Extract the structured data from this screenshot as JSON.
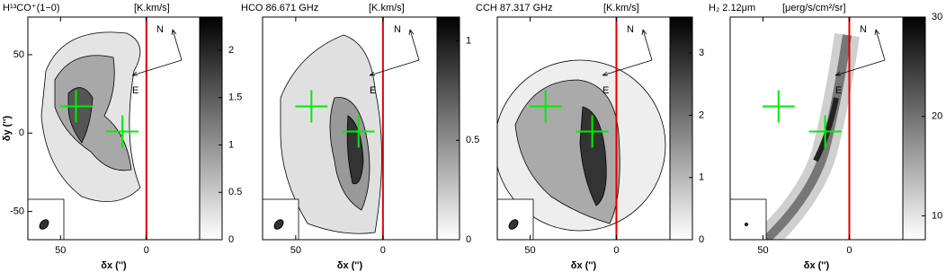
{
  "chart_data": [
    {
      "type": "image",
      "title": "H¹³CO⁺(1−0)",
      "unit": "[K.km/s]",
      "xlabel": "δx ('')",
      "ylabel": "δy ('')",
      "xlim": [
        69,
        -31
      ],
      "xticks": [
        50,
        0
      ],
      "ylim": [
        -68,
        74
      ],
      "yticks": [
        50,
        0,
        -50
      ],
      "clim": [
        0,
        2.35
      ],
      "cticks": [
        0,
        0.5,
        1,
        1.5,
        2
      ],
      "markers": {
        "x": [
          41,
          14
        ],
        "y": [
          17,
          1
        ],
        "color": "#00ee00"
      },
      "vline": {
        "x": 0,
        "color": "#e00000"
      },
      "compass": {
        "north": "N",
        "east": "E"
      }
    },
    {
      "type": "image",
      "title": "HCO 86.671 GHz",
      "unit": "[K.km/s]",
      "xlabel": "δx ('')",
      "xlim": [
        69,
        -31
      ],
      "xticks": [
        50,
        0
      ],
      "ylim": [
        -68,
        74
      ],
      "clim": [
        0,
        1.12
      ],
      "cticks": [
        0,
        0.5,
        1
      ],
      "markers": {
        "x": [
          41,
          14
        ],
        "y": [
          17,
          1
        ],
        "color": "#00ee00"
      },
      "vline": {
        "x": 0,
        "color": "#e00000"
      },
      "compass": {
        "north": "N",
        "east": "E"
      }
    },
    {
      "type": "image",
      "title": "CCH 87.317 GHz",
      "unit": "[K.km/s]",
      "xlabel": "δx ('')",
      "xlim": [
        69,
        -31
      ],
      "xticks": [
        50,
        0
      ],
      "ylim": [
        -68,
        74
      ],
      "clim": [
        0,
        3.58
      ],
      "cticks": [
        0,
        1,
        2,
        3
      ],
      "markers": {
        "x": [
          41,
          14
        ],
        "y": [
          17,
          1
        ],
        "color": "#00ee00"
      },
      "vline": {
        "x": 0,
        "color": "#e00000"
      },
      "compass": {
        "north": "N",
        "east": "E"
      }
    },
    {
      "type": "image",
      "title": "H₂ 2.12μm",
      "unit": "[μerg/s/cm²/sr]",
      "xlabel": "δx ('')",
      "xlim": [
        69,
        -31
      ],
      "xticks": [
        50,
        0
      ],
      "ylim": [
        -68,
        74
      ],
      "clim": [
        7.6,
        30
      ],
      "cticks": [
        10,
        20,
        30
      ],
      "markers": {
        "x": [
          41,
          14
        ],
        "y": [
          17,
          1
        ],
        "color": "#00ee00"
      },
      "vline": {
        "x": 0,
        "color": "#e00000"
      },
      "compass": {
        "north": "N",
        "east": "E"
      }
    }
  ]
}
